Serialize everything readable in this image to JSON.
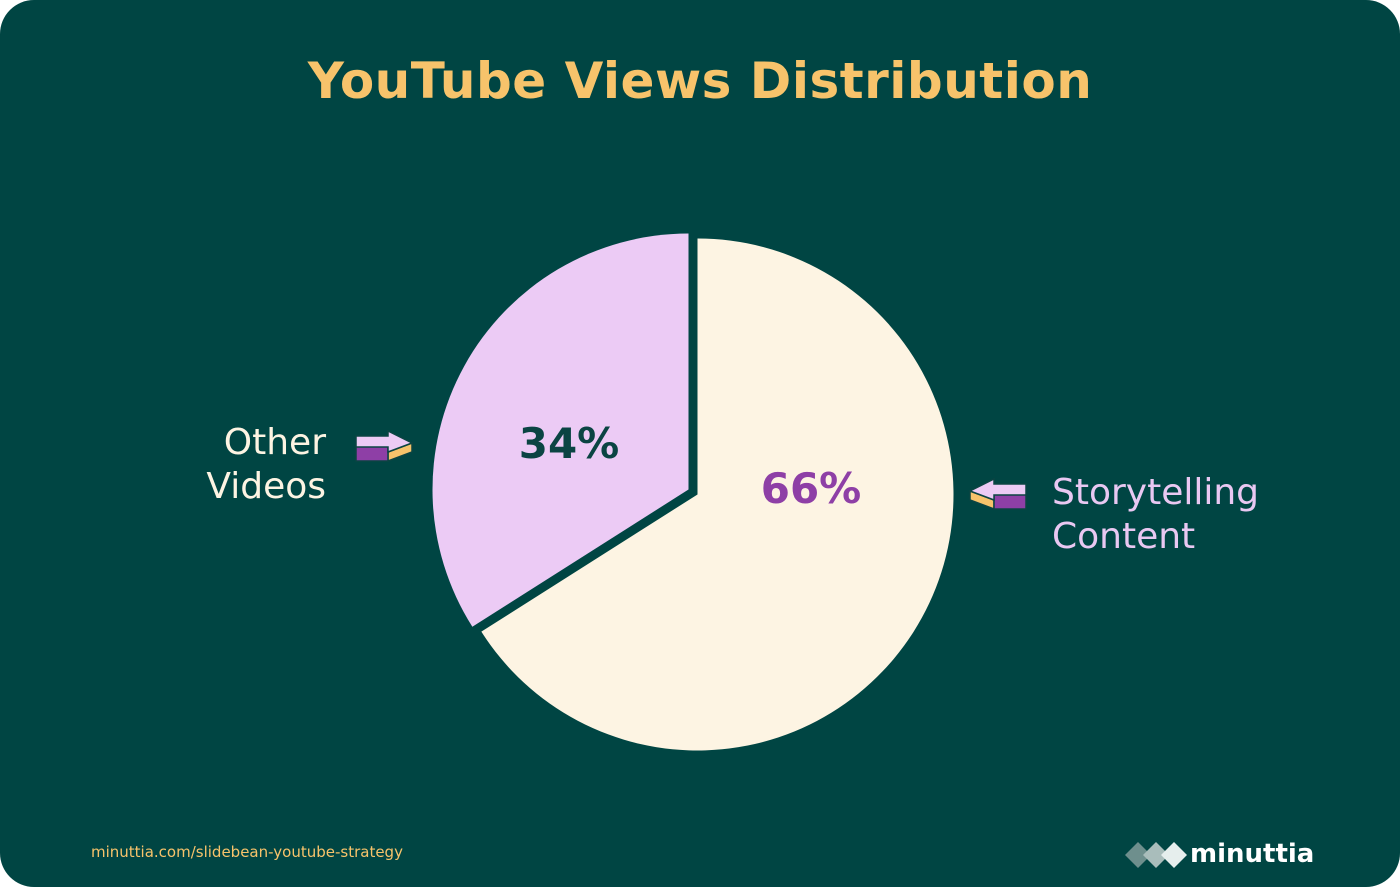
{
  "chart_data": {
    "type": "pie",
    "title": "YouTube Views Distribution",
    "slices": [
      {
        "label_lines": [
          "Storytelling",
          "Content"
        ],
        "value": 66,
        "value_label": "66%",
        "color": "#FDF4E3"
      },
      {
        "label_lines": [
          "Other",
          "Videos"
        ],
        "value": 34,
        "value_label": "34%",
        "color": "#ECCBF5"
      }
    ]
  },
  "colors": {
    "background": "#004543",
    "title": "#F7C36B",
    "storytelling_text": "#E9C8F2",
    "other_text": "#FDF4E3",
    "pct_storytelling": "#8E3FA6",
    "pct_other": "#0B4443",
    "arrow_purple": "#8E3FA6",
    "arrow_pink": "#ECCBF5",
    "arrow_gold": "#F7C36B"
  },
  "footer": {
    "source_url": "minuttia.com/slidebean-youtube-strategy",
    "brand": "minuttia",
    "logo_icon": "diamond-chain-logo-icon"
  },
  "icons": {
    "left_arrow": "arrow-right-icon",
    "right_arrow": "arrow-left-icon"
  }
}
